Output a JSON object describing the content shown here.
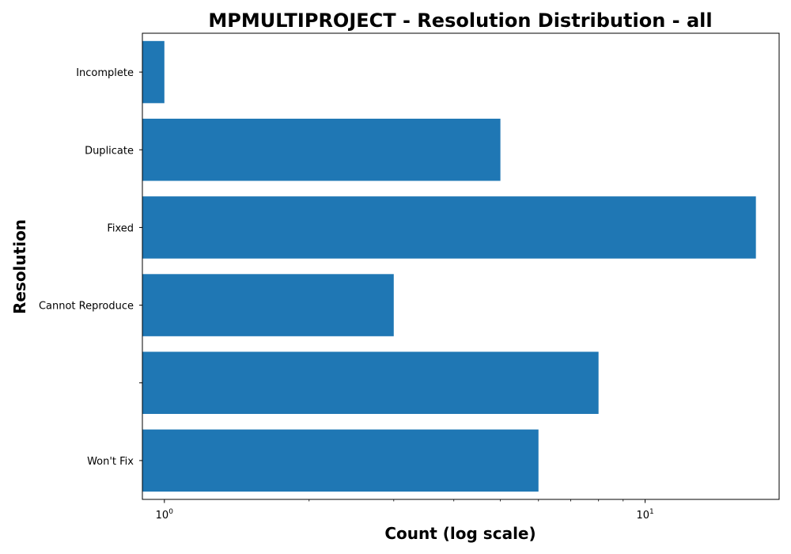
{
  "chart_data": {
    "type": "bar",
    "orientation": "horizontal",
    "title": "MPMULTIPROJECT - Resolution Distribution - all",
    "xlabel": "Count (log scale)",
    "ylabel": "Resolution",
    "xscale": "log",
    "xlim": [
      0.9,
      19
    ],
    "categories": [
      "Incomplete",
      "Duplicate",
      "Fixed",
      "Cannot Reproduce",
      "",
      "Won't Fix"
    ],
    "values": [
      1,
      5,
      17,
      3,
      8,
      6
    ],
    "bar_color": "#1f77b4",
    "x_major_ticks": [
      {
        "value": 1,
        "base": "10",
        "exp": "0"
      },
      {
        "value": 10,
        "base": "10",
        "exp": "1"
      }
    ],
    "x_minor_ticks": [
      2,
      3,
      4,
      5,
      6,
      7,
      8,
      9
    ]
  }
}
